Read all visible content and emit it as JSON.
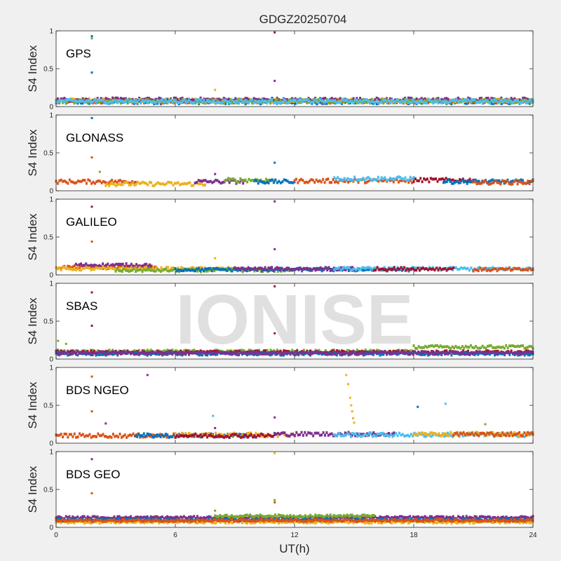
{
  "chart_data": {
    "type": "scatter",
    "title": "GDGZ20250704",
    "xlabel": "UT(h)",
    "watermark": "IONISE",
    "xlim": [
      0,
      24
    ],
    "xticks": [
      "0",
      "6",
      "12",
      "18",
      "24"
    ],
    "series_colors": [
      "#0072BD",
      "#D95319",
      "#EDB120",
      "#7E2F8E",
      "#77AC30",
      "#4DBEEE",
      "#A2142F"
    ],
    "panels": [
      {
        "name": "GPS",
        "ylabel": "S4 Index",
        "ylim": [
          0,
          1
        ],
        "yticks": [
          "0",
          "0.5",
          "1"
        ],
        "baseline": 0.07,
        "noise": 0.025,
        "segments": [
          {
            "color": 0,
            "x0": 0,
            "x1": 24,
            "level": 0.06
          },
          {
            "color": 1,
            "x0": 0,
            "x1": 24,
            "level": 0.07
          },
          {
            "color": 2,
            "x0": 0,
            "x1": 24,
            "level": 0.08
          },
          {
            "color": 3,
            "x0": 0,
            "x1": 24,
            "level": 0.09
          },
          {
            "color": 4,
            "x0": 0,
            "x1": 24,
            "level": 0.07
          },
          {
            "color": 5,
            "x0": 0,
            "x1": 24,
            "level": 0.07
          }
        ],
        "outliers": [
          {
            "x": 1.8,
            "y": 0.93,
            "color": 0
          },
          {
            "x": 1.8,
            "y": 0.9,
            "color": 4
          },
          {
            "x": 1.8,
            "y": 0.45,
            "color": 0
          },
          {
            "x": 8.0,
            "y": 0.22,
            "color": 2
          },
          {
            "x": 11.0,
            "y": 0.98,
            "color": 6
          },
          {
            "x": 11.0,
            "y": 0.34,
            "color": 3
          }
        ]
      },
      {
        "name": "GLONASS",
        "ylabel": "S4 Index",
        "ylim": [
          0,
          1
        ],
        "yticks": [
          "0",
          "0.5",
          "1"
        ],
        "baseline": 0.12,
        "noise": 0.025,
        "segments": [
          {
            "color": 1,
            "x0": 0,
            "x1": 4,
            "level": 0.12
          },
          {
            "color": 2,
            "x0": 2.5,
            "x1": 7.5,
            "level": 0.09
          },
          {
            "color": 3,
            "x0": 7,
            "x1": 9.5,
            "level": 0.12
          },
          {
            "color": 4,
            "x0": 8.5,
            "x1": 11,
            "level": 0.14
          },
          {
            "color": 0,
            "x0": 10,
            "x1": 12,
            "level": 0.12
          },
          {
            "color": 1,
            "x0": 12,
            "x1": 18,
            "level": 0.13
          },
          {
            "color": 5,
            "x0": 14,
            "x1": 18,
            "level": 0.16
          },
          {
            "color": 6,
            "x0": 18,
            "x1": 21,
            "level": 0.14
          },
          {
            "color": 0,
            "x0": 19.5,
            "x1": 24,
            "level": 0.12
          },
          {
            "color": 1,
            "x0": 21,
            "x1": 24,
            "level": 0.11
          }
        ],
        "outliers": [
          {
            "x": 1.8,
            "y": 0.96,
            "color": 0
          },
          {
            "x": 1.8,
            "y": 0.44,
            "color": 1
          },
          {
            "x": 2.2,
            "y": 0.25,
            "color": 4
          },
          {
            "x": 8.0,
            "y": 0.22,
            "color": 3
          },
          {
            "x": 11.0,
            "y": 0.37,
            "color": 0
          }
        ]
      },
      {
        "name": "GALILEO",
        "ylabel": "S4 Index",
        "ylim": [
          0,
          1
        ],
        "yticks": [
          "0",
          "0.5",
          "1"
        ],
        "baseline": 0.07,
        "noise": 0.02,
        "segments": [
          {
            "color": 1,
            "x0": 0,
            "x1": 5,
            "level": 0.1
          },
          {
            "color": 3,
            "x0": 1,
            "x1": 4.8,
            "level": 0.13
          },
          {
            "color": 2,
            "x0": 0,
            "x1": 9,
            "level": 0.08
          },
          {
            "color": 4,
            "x0": 3,
            "x1": 12,
            "level": 0.06
          },
          {
            "color": 0,
            "x0": 6,
            "x1": 18,
            "level": 0.07
          },
          {
            "color": 3,
            "x0": 9,
            "x1": 15,
            "level": 0.08
          },
          {
            "color": 5,
            "x0": 14,
            "x1": 24,
            "level": 0.08
          },
          {
            "color": 6,
            "x0": 16,
            "x1": 20,
            "level": 0.08
          },
          {
            "color": 1,
            "x0": 21,
            "x1": 24,
            "level": 0.07
          }
        ],
        "outliers": [
          {
            "x": 1.8,
            "y": 0.9,
            "color": 6
          },
          {
            "x": 1.8,
            "y": 0.44,
            "color": 1
          },
          {
            "x": 8.0,
            "y": 0.22,
            "color": 2
          },
          {
            "x": 11.0,
            "y": 0.97,
            "color": 3
          },
          {
            "x": 11.0,
            "y": 0.34,
            "color": 3
          }
        ]
      },
      {
        "name": "SBAS",
        "ylabel": "S4 Index",
        "ylim": [
          0,
          1
        ],
        "yticks": [
          "0",
          "0.5",
          "1"
        ],
        "baseline": 0.09,
        "noise": 0.02,
        "segments": [
          {
            "color": 4,
            "x0": 0,
            "x1": 18,
            "level": 0.1
          },
          {
            "color": 6,
            "x0": 0,
            "x1": 24,
            "level": 0.09
          },
          {
            "color": 0,
            "x0": 0,
            "x1": 24,
            "level": 0.07
          },
          {
            "color": 3,
            "x0": 0,
            "x1": 24,
            "level": 0.08
          },
          {
            "color": 4,
            "x0": 18,
            "x1": 24,
            "level": 0.16
          }
        ],
        "outliers": [
          {
            "x": 0.1,
            "y": 0.24,
            "color": 4
          },
          {
            "x": 0.5,
            "y": 0.2,
            "color": 4
          },
          {
            "x": 1.8,
            "y": 0.88,
            "color": 6
          },
          {
            "x": 1.8,
            "y": 0.44,
            "color": 6
          },
          {
            "x": 11.0,
            "y": 0.96,
            "color": 6
          },
          {
            "x": 11.0,
            "y": 0.34,
            "color": 6
          }
        ]
      },
      {
        "name": "BDS NGEO",
        "ylabel": "S4 Index",
        "ylim": [
          0,
          1
        ],
        "yticks": [
          "0",
          "0.5",
          "1"
        ],
        "baseline": 0.11,
        "noise": 0.025,
        "segments": [
          {
            "color": 1,
            "x0": 0,
            "x1": 6,
            "level": 0.1
          },
          {
            "color": 0,
            "x0": 4,
            "x1": 10,
            "level": 0.1
          },
          {
            "color": 2,
            "x0": 6,
            "x1": 12,
            "level": 0.11
          },
          {
            "color": 6,
            "x0": 6,
            "x1": 11,
            "level": 0.1
          },
          {
            "color": 3,
            "x0": 11,
            "x1": 17,
            "level": 0.12
          },
          {
            "color": 5,
            "x0": 14,
            "x1": 24,
            "level": 0.11
          },
          {
            "color": 2,
            "x0": 18,
            "x1": 24,
            "level": 0.12
          },
          {
            "color": 1,
            "x0": 20,
            "x1": 24,
            "level": 0.12
          }
        ],
        "outliers": [
          {
            "x": 1.8,
            "y": 0.88,
            "color": 1
          },
          {
            "x": 1.8,
            "y": 0.42,
            "color": 1
          },
          {
            "x": 2.5,
            "y": 0.26,
            "color": 3
          },
          {
            "x": 4.6,
            "y": 0.9,
            "color": 3
          },
          {
            "x": 7.9,
            "y": 0.36,
            "color": 5
          },
          {
            "x": 8.0,
            "y": 0.2,
            "color": 3
          },
          {
            "x": 11.0,
            "y": 0.34,
            "color": 3
          },
          {
            "x": 14.6,
            "y": 0.9,
            "color": 2
          },
          {
            "x": 14.7,
            "y": 0.78,
            "color": 2
          },
          {
            "x": 14.8,
            "y": 0.6,
            "color": 2
          },
          {
            "x": 14.85,
            "y": 0.5,
            "color": 2
          },
          {
            "x": 14.9,
            "y": 0.42,
            "color": 2
          },
          {
            "x": 14.95,
            "y": 0.33,
            "color": 2
          },
          {
            "x": 15.0,
            "y": 0.27,
            "color": 2
          },
          {
            "x": 18.2,
            "y": 0.48,
            "color": 0
          },
          {
            "x": 19.6,
            "y": 0.52,
            "color": 5
          },
          {
            "x": 21.6,
            "y": 0.25,
            "color": 4
          }
        ]
      },
      {
        "name": "BDS GEO",
        "ylabel": "S4 Index",
        "ylim": [
          0,
          1
        ],
        "yticks": [
          "0",
          "0.5",
          "1"
        ],
        "baseline": 0.11,
        "noise": 0.015,
        "segments": [
          {
            "color": 3,
            "x0": 0,
            "x1": 24,
            "level": 0.13
          },
          {
            "color": 2,
            "x0": 0,
            "x1": 24,
            "level": 0.07
          },
          {
            "color": 0,
            "x0": 0,
            "x1": 24,
            "level": 0.1
          },
          {
            "color": 4,
            "x0": 8,
            "x1": 16,
            "level": 0.15
          },
          {
            "color": 1,
            "x0": 0,
            "x1": 24,
            "level": 0.09
          }
        ],
        "outliers": [
          {
            "x": 1.8,
            "y": 0.9,
            "color": 3
          },
          {
            "x": 1.8,
            "y": 0.45,
            "color": 1
          },
          {
            "x": 8.0,
            "y": 0.22,
            "color": 4
          },
          {
            "x": 11.0,
            "y": 0.98,
            "color": 2
          },
          {
            "x": 11.0,
            "y": 0.36,
            "color": 4
          },
          {
            "x": 11.0,
            "y": 0.33,
            "color": 1
          }
        ]
      }
    ]
  }
}
